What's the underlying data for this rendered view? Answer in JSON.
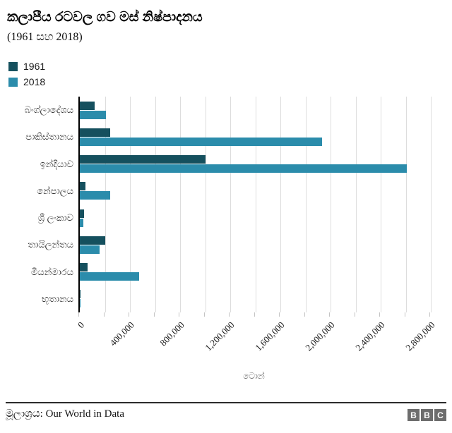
{
  "header": {
    "title": "කලාපීය රටවල ගව මස් නිෂ්පාදනය",
    "subtitle": "(1961 සහ 2018)"
  },
  "legend": [
    {
      "label": "1961",
      "color": "#15505e"
    },
    {
      "label": "2018",
      "color": "#2b8cab"
    }
  ],
  "chart_data": {
    "type": "bar",
    "orientation": "horizontal",
    "title": "කලාපීය රටවල ගව මස් නිෂ්පාදනය",
    "subtitle": "(1961 සහ 2018)",
    "categories": [
      "බංග්ලාදේශය",
      "පාකිස්තානය",
      "ඉන්දියාව",
      "නේපාලය",
      "ශ්‍රී ලංකාව",
      "තායිලන්තය",
      "මියන්මාරය",
      "භූතානය"
    ],
    "series": [
      {
        "name": "1961",
        "color": "#15505e",
        "values": [
          120000,
          245000,
          1000000,
          43000,
          35000,
          200000,
          60000,
          1000
        ]
      },
      {
        "name": "2018",
        "color": "#2b8cab",
        "values": [
          210000,
          1930000,
          2610000,
          245000,
          28000,
          155000,
          475000,
          2000
        ]
      }
    ],
    "xlabel": "ටොන්",
    "ylabel": "",
    "xlim": [
      0,
      2800000
    ],
    "grid_step": 200000,
    "tick_step": 400000,
    "tick_labels": [
      "0",
      "400,000",
      "800,000",
      "1,200,000",
      "1,600,000",
      "2,000,000",
      "2,400,000",
      "2,800,000"
    ],
    "grid": "vertical",
    "legend_position": "top-left"
  },
  "footer": {
    "source": "මූලාශ්‍රය: Our World in Data",
    "logo_letters": [
      "B",
      "B",
      "C"
    ]
  }
}
